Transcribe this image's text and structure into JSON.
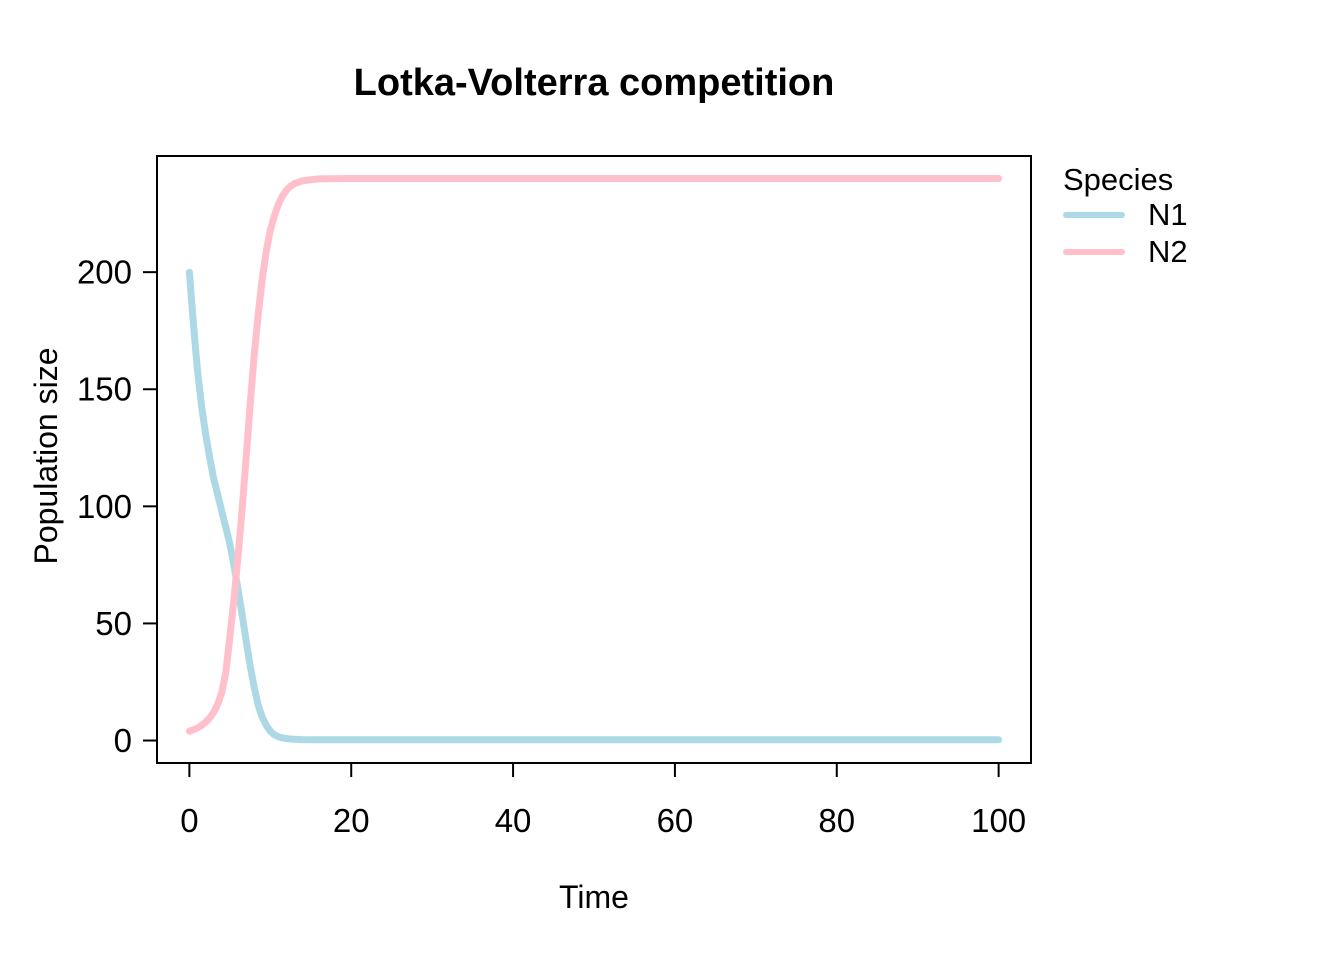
{
  "chart_data": {
    "type": "line",
    "title": "Lotka-Volterra competition",
    "xlabel": "Time",
    "ylabel": "Population size",
    "xlim": [
      0,
      100
    ],
    "ylim": [
      0,
      240
    ],
    "xticks": [
      0,
      20,
      40,
      60,
      80,
      100
    ],
    "yticks": [
      0,
      50,
      100,
      150,
      200
    ],
    "grid": false,
    "plot_background": "#ffffff",
    "axis_color": "#000000",
    "legend": {
      "title": "Species",
      "position": "right-outside"
    },
    "series": [
      {
        "name": "N1",
        "color": "#ADD8E6",
        "points": [
          [
            0,
            200
          ],
          [
            0.5,
            178
          ],
          [
            1,
            158
          ],
          [
            1.5,
            143
          ],
          [
            2,
            131
          ],
          [
            2.5,
            121
          ],
          [
            3,
            112
          ],
          [
            3.5,
            105
          ],
          [
            4,
            98
          ],
          [
            4.5,
            91
          ],
          [
            5,
            84
          ],
          [
            5.5,
            75
          ],
          [
            6,
            65
          ],
          [
            6.5,
            54
          ],
          [
            7,
            43
          ],
          [
            7.5,
            32
          ],
          [
            8,
            23
          ],
          [
            8.5,
            15
          ],
          [
            9,
            10
          ],
          [
            9.5,
            6.5
          ],
          [
            10,
            4
          ],
          [
            10.5,
            2.5
          ],
          [
            11,
            1.6
          ],
          [
            11.5,
            1.1
          ],
          [
            12,
            0.8
          ],
          [
            13,
            0.5
          ],
          [
            14,
            0.4
          ],
          [
            15,
            0.35
          ],
          [
            20,
            0.3
          ],
          [
            30,
            0.3
          ],
          [
            40,
            0.3
          ],
          [
            50,
            0.3
          ],
          [
            60,
            0.3
          ],
          [
            70,
            0.3
          ],
          [
            80,
            0.3
          ],
          [
            90,
            0.3
          ],
          [
            100,
            0.3
          ]
        ]
      },
      {
        "name": "N2",
        "color": "#FFC0CB",
        "points": [
          [
            0,
            4
          ],
          [
            0.5,
            4.6
          ],
          [
            1,
            5.4
          ],
          [
            1.5,
            6.4
          ],
          [
            2,
            7.8
          ],
          [
            2.5,
            9.6
          ],
          [
            3,
            12
          ],
          [
            3.5,
            15.5
          ],
          [
            4,
            20.5
          ],
          [
            4.5,
            29
          ],
          [
            5,
            44
          ],
          [
            5.5,
            60
          ],
          [
            6,
            78
          ],
          [
            6.5,
            98
          ],
          [
            7,
            120
          ],
          [
            7.5,
            143
          ],
          [
            8,
            164
          ],
          [
            8.5,
            182
          ],
          [
            9,
            197
          ],
          [
            9.5,
            209
          ],
          [
            10,
            218
          ],
          [
            10.5,
            224
          ],
          [
            11,
            229
          ],
          [
            11.5,
            232.5
          ],
          [
            12,
            235
          ],
          [
            12.5,
            236.7
          ],
          [
            13,
            237.8
          ],
          [
            14,
            239
          ],
          [
            15,
            239.5
          ],
          [
            16,
            239.8
          ],
          [
            20,
            240
          ],
          [
            30,
            240
          ],
          [
            40,
            240
          ],
          [
            50,
            240
          ],
          [
            60,
            240
          ],
          [
            70,
            240
          ],
          [
            80,
            240
          ],
          [
            90,
            240
          ],
          [
            100,
            240
          ]
        ]
      }
    ]
  }
}
